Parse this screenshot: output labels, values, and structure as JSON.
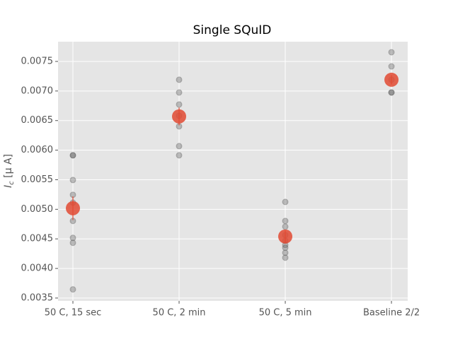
{
  "chart_data": {
    "type": "scatter",
    "title": "Single SQuID",
    "ylabel": [
      "I",
      "c",
      " [μ A]"
    ],
    "categories": [
      "50 C, 15 sec",
      "50 C, 2 min",
      "50 C, 5 min",
      "Baseline 2/2"
    ],
    "points": [
      [
        0.005913,
        0.005913,
        0.005495,
        0.005245,
        0.005113,
        0.004803,
        0.004517,
        0.004434,
        0.003646
      ],
      [
        0.00719,
        0.006975,
        0.006772,
        0.006581,
        0.006402,
        0.006068,
        0.005913
      ],
      [
        0.005125,
        0.004803,
        0.004707,
        0.004564,
        0.004469,
        0.004397,
        0.00435,
        0.004266,
        0.004182
      ],
      [
        0.007655,
        0.007416,
        0.00719,
        0.006975,
        0.006975
      ]
    ],
    "means": [
      0.005018,
      0.00657,
      0.00454,
      0.00719
    ],
    "errors": [
      0.0002,
      0.00015,
      0.0001,
      8e-05
    ],
    "point_color": "#555555",
    "mean_color": "#E24A33",
    "xlim": [
      -0.14,
      3.153
    ],
    "ylim": [
      0.003452,
      0.007834
    ],
    "yticks": [
      0.0035,
      {
        "value": 0.004,
        "label": "0.0040"
      },
      0.0045,
      {
        "value": 0.005,
        "label": "0.0050"
      },
      0.0055,
      {
        "value": 0.006,
        "label": "0.0060"
      },
      0.0065,
      {
        "value": 0.007,
        "label": "0.0070"
      },
      0.0075
    ],
    "grid": true
  }
}
